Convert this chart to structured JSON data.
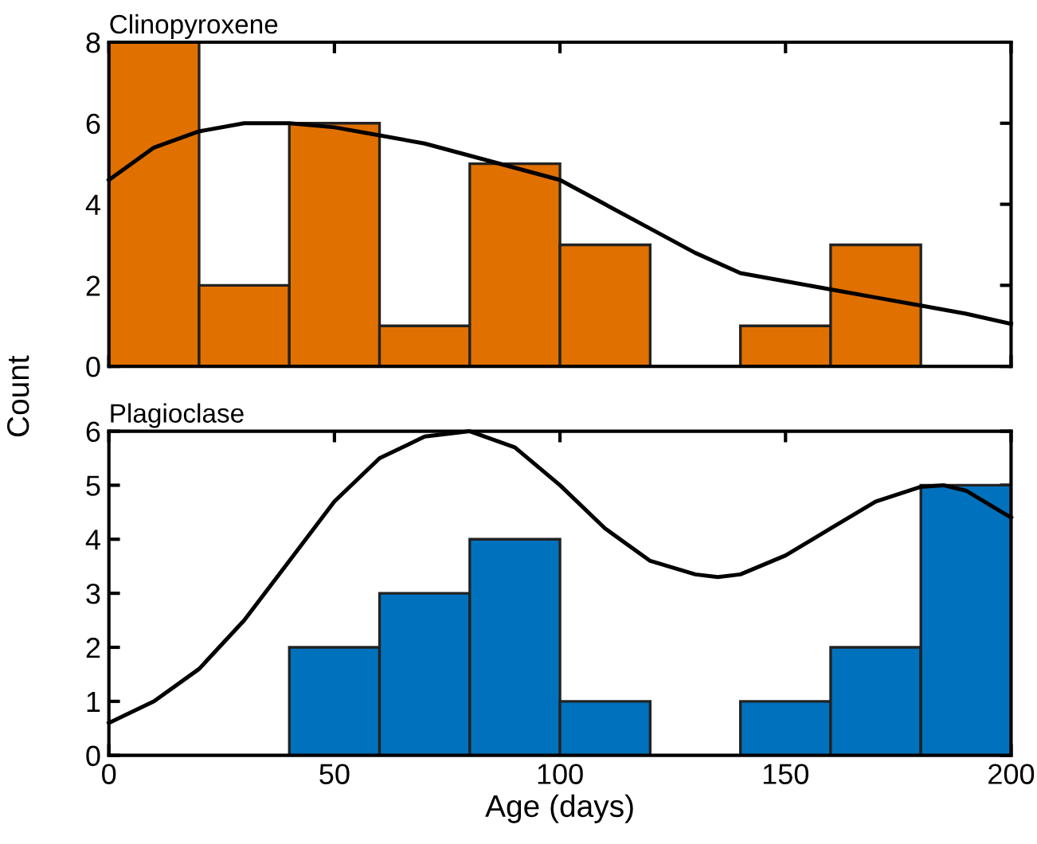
{
  "chart_data": [
    {
      "type": "histogram",
      "title": "Clinopyroxene",
      "ylabel": "Count",
      "bins": [
        0,
        20,
        40,
        60,
        80,
        100,
        120,
        140,
        160,
        180,
        200
      ],
      "xlim": [
        0,
        200
      ],
      "xticks": [
        {
          "value": 0,
          "label": null
        },
        {
          "value": 50,
          "label": null
        },
        {
          "value": 100,
          "label": null
        },
        {
          "value": 150,
          "label": null
        },
        {
          "value": 200,
          "label": null
        }
      ],
      "ylim": [
        0,
        8
      ],
      "yticks": [
        0,
        2,
        4,
        6,
        8
      ],
      "tick_labels": "y",
      "grid": false,
      "legend": false,
      "series": [
        {
          "color": "#e07000",
          "values": [
            8,
            2,
            6,
            1,
            5,
            3,
            0,
            1,
            3,
            0
          ]
        },
        {
          "type": "line",
          "color": "#000000",
          "x": [
            0,
            10,
            20,
            30,
            40,
            50,
            60,
            70,
            80,
            90,
            100,
            110,
            120,
            130,
            140,
            150,
            160,
            170,
            180,
            190,
            200
          ],
          "values": [
            4.6,
            5.4,
            5.8,
            6.0,
            6.0,
            5.9,
            5.7,
            5.5,
            5.2,
            4.9,
            4.6,
            4.0,
            3.4,
            2.8,
            2.3,
            2.1,
            1.9,
            1.7,
            1.5,
            1.3,
            1.05
          ]
        }
      ]
    },
    {
      "type": "histogram",
      "title": "Plagioclase",
      "xlabel": "Age (days)",
      "bins": [
        0,
        20,
        40,
        60,
        80,
        100,
        120,
        140,
        160,
        180,
        200
      ],
      "xlim": [
        0,
        200
      ],
      "xticks": [
        0,
        50,
        100,
        150,
        200
      ],
      "ylim": [
        0,
        6
      ],
      "yticks": [
        0,
        1,
        2,
        3,
        4,
        5,
        6
      ],
      "grid": false,
      "legend": false,
      "series": [
        {
          "color": "#0072bd",
          "values": [
            0,
            0,
            2,
            3,
            4,
            1,
            0,
            1,
            2,
            5
          ]
        },
        {
          "type": "line",
          "color": "#000000",
          "x": [
            0,
            10,
            20,
            30,
            40,
            50,
            60,
            70,
            80,
            90,
            100,
            110,
            120,
            130,
            135,
            140,
            150,
            160,
            170,
            180,
            185,
            190,
            200
          ],
          "values": [
            0.6,
            1.0,
            1.6,
            2.5,
            3.6,
            4.7,
            5.5,
            5.9,
            6.0,
            5.7,
            5.0,
            4.2,
            3.6,
            3.35,
            3.3,
            3.35,
            3.7,
            4.2,
            4.7,
            4.97,
            5.0,
            4.9,
            4.4
          ]
        }
      ]
    }
  ]
}
